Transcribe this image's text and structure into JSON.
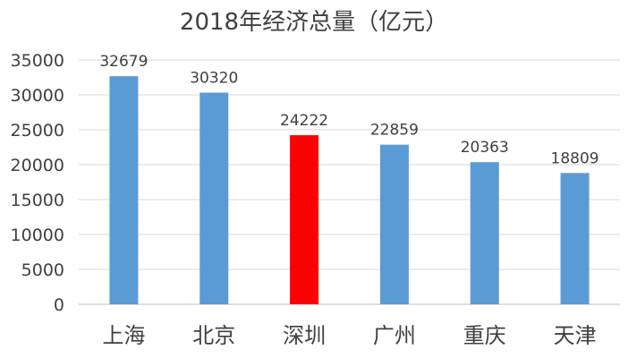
{
  "chart_data": {
    "type": "bar",
    "title": "2018年经济总量（亿元）",
    "xlabel": "",
    "ylabel": "",
    "categories": [
      "上海",
      "北京",
      "深圳",
      "广州",
      "重庆",
      "天津"
    ],
    "values": [
      32679,
      30320,
      24222,
      22859,
      20363,
      18809
    ],
    "value_labels": [
      "32679",
      "30320",
      "24222",
      "22859",
      "20363",
      "18809"
    ],
    "y_ticks": [
      "0",
      "5000",
      "10000",
      "15000",
      "20000",
      "25000",
      "30000",
      "35000"
    ],
    "ylim": [
      0,
      35000
    ],
    "grid": true,
    "legend": "none",
    "colors": {
      "default": "#5b9bd5",
      "highlight": "#ff0000",
      "highlight_category": "深圳"
    }
  }
}
